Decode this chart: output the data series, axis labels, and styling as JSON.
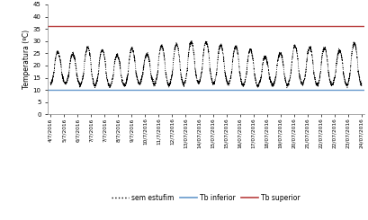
{
  "tb_inferior": 10.0,
  "tb_superior": 36.0,
  "ylim": [
    0,
    45
  ],
  "yticks": [
    0,
    5,
    10,
    15,
    20,
    25,
    30,
    35,
    40,
    45
  ],
  "ylabel": "Temperatura (ºC)",
  "tb_inferior_color": "#6699CC",
  "tb_superior_color": "#B94040",
  "line_color": "#000000",
  "background_color": "#FFFFFF",
  "legend_labels": [
    "sem estufim",
    "Tb inferior",
    "Tb superior"
  ],
  "dates": [
    "4/7/2016",
    "5/7/2016",
    "6/7/2016",
    "7/7/2016",
    "7/7/2016",
    "8/7/2016",
    "9/7/2016",
    "10/7/2016",
    "11/7/2016",
    "12/7/2016",
    "13/07/2016",
    "14/07/2016",
    "15/07/2016",
    "15/07/2016",
    "16/07/2016",
    "17/07/2016",
    "18/07/2016",
    "19/07/2016",
    "20/07/2016",
    "21/07/2016",
    "22/07/2016",
    "22/07/2016",
    "23/07/2016",
    "24/07/2016"
  ],
  "num_points": 4800,
  "seed": 7
}
